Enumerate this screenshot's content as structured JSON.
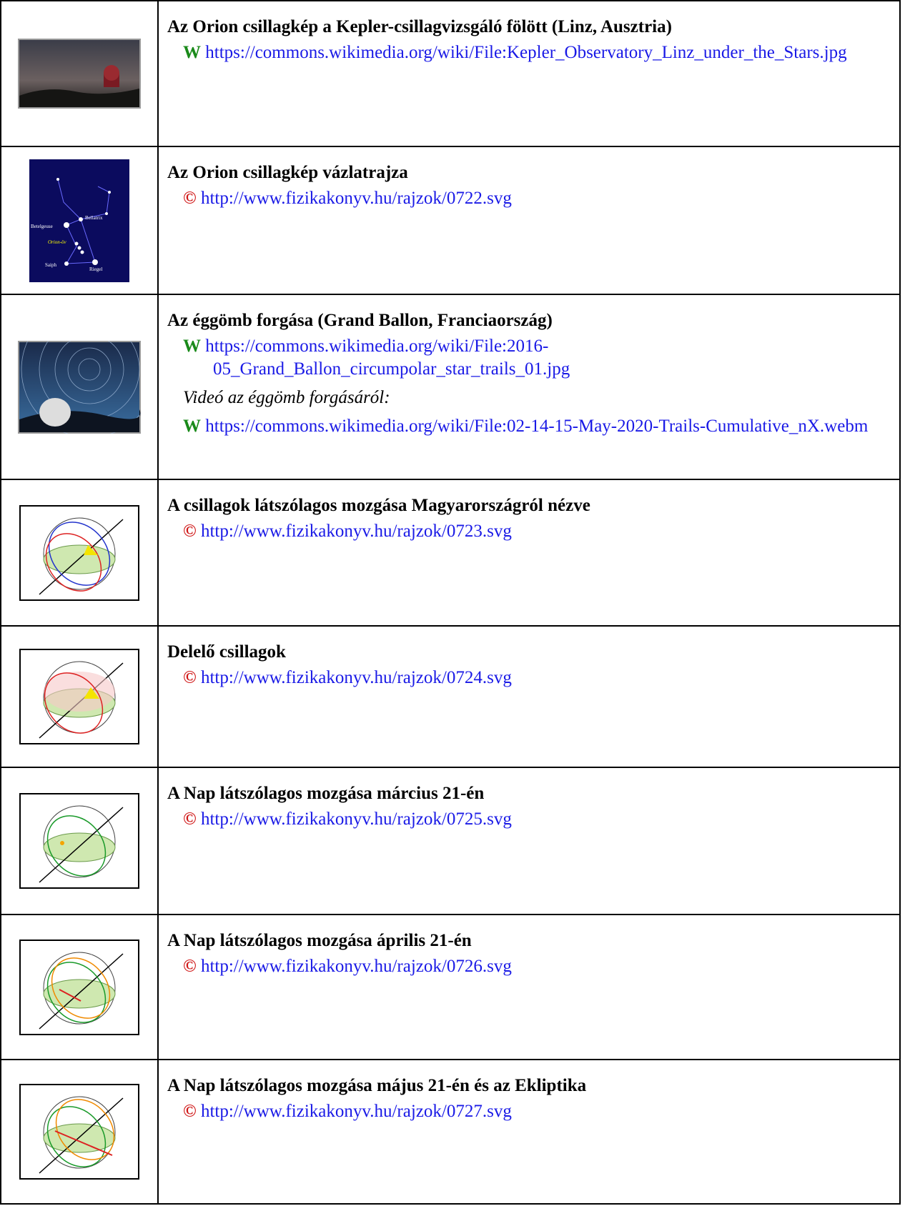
{
  "rows": [
    {
      "title": "Az Orion csillagkép a Kepler-csillagvizsgáló fölött (Linz, Ausztria)",
      "items": [
        {
          "icon": "W",
          "url": "https://commons.wikimedia.org/wiki/File:Kepler_Observatory_Linz_under_the_Stars.jpg"
        }
      ]
    },
    {
      "title": "Az Orion csillagkép vázlatrajza",
      "image_labels": [
        "Betelgeuse",
        "Bellatrix",
        "Orion-öv",
        "Saiph",
        "Riegel"
      ],
      "items": [
        {
          "icon": "©",
          "url": "http://www.fizikakonyv.hu/rajzok/0722.svg"
        }
      ]
    },
    {
      "title": "Az éggömb forgása (Grand Ballon, Franciaország)",
      "items": [
        {
          "icon": "W",
          "url": "https://commons.wikimedia.org/wiki/File:2016-05_Grand_Ballon_circumpolar_star_trails_01.jpg"
        },
        {
          "note": "Videó az éggömb forgásáról:"
        },
        {
          "icon": "W",
          "url": "https://commons.wikimedia.org/wiki/File:02-14-15-May-2020-Trails-Cumulative_nX.webm"
        }
      ]
    },
    {
      "title": "A csillagok látszólagos mozgása Magyarországról nézve",
      "items": [
        {
          "icon": "©",
          "url": "http://www.fizikakonyv.hu/rajzok/0723.svg"
        }
      ]
    },
    {
      "title": "Delelő csillagok",
      "items": [
        {
          "icon": "©",
          "url": "http://www.fizikakonyv.hu/rajzok/0724.svg"
        }
      ]
    },
    {
      "title": "A Nap látszólagos mozgása március 21-én",
      "items": [
        {
          "icon": "©",
          "url": "http://www.fizikakonyv.hu/rajzok/0725.svg"
        }
      ]
    },
    {
      "title": "A Nap látszólagos mozgása április 21-én",
      "items": [
        {
          "icon": "©",
          "url": "http://www.fizikakonyv.hu/rajzok/0726.svg"
        }
      ]
    },
    {
      "title": "A Nap látszólagos mozgása május 21-én  és az Ekliptika",
      "items": [
        {
          "icon": "©",
          "url": "http://www.fizikakonyv.hu/rajzok/0727.svg"
        }
      ]
    }
  ]
}
